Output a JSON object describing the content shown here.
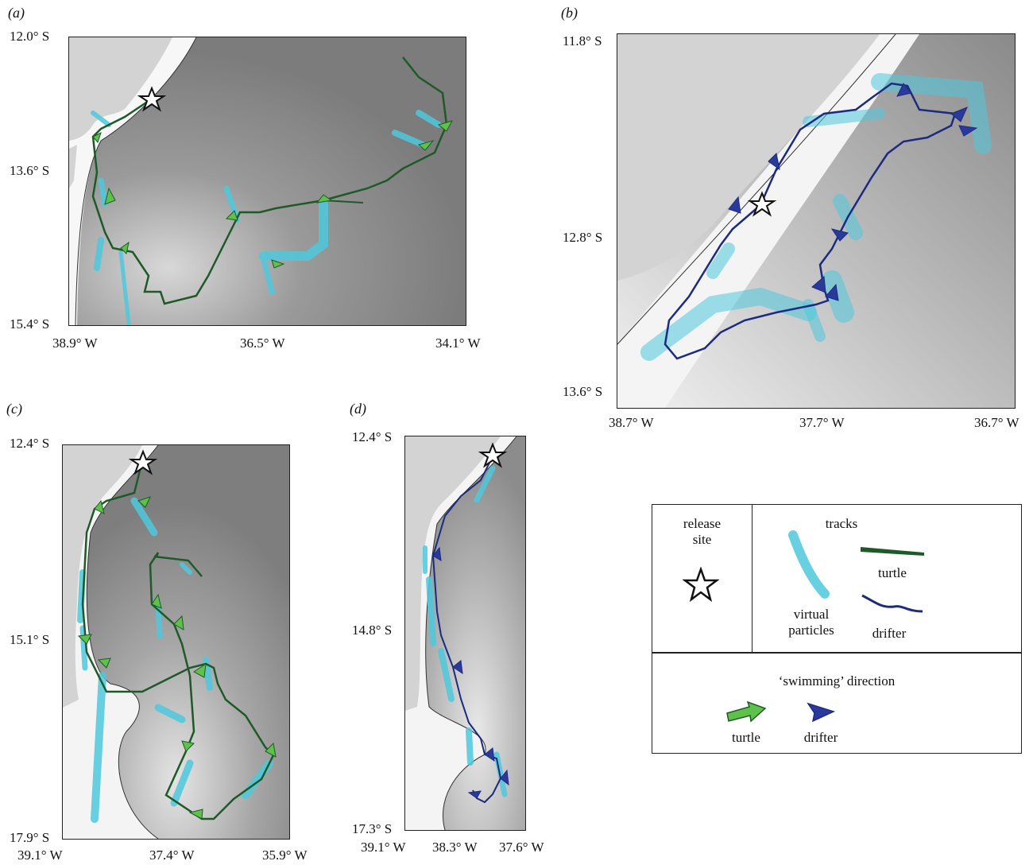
{
  "panels": {
    "a": {
      "label": "(a)",
      "lat_ticks": [
        "12.0° S",
        "13.6° S",
        "15.4° S"
      ],
      "lon_ticks": [
        "38.9° W",
        "36.5° W",
        "34.1° W"
      ]
    },
    "b": {
      "label": "(b)",
      "lat_ticks": [
        "11.8° S",
        "12.8° S",
        "13.6° S"
      ],
      "lon_ticks": [
        "38.7° W",
        "37.7° W",
        "36.7° W"
      ]
    },
    "c": {
      "label": "(c)",
      "lat_ticks": [
        "12.4° S",
        "15.1° S",
        "17.9° S"
      ],
      "lon_ticks": [
        "39.1° W",
        "37.4° W",
        "35.9° W"
      ]
    },
    "d": {
      "label": "(d)",
      "lat_ticks": [
        "12.4° S",
        "14.8° S",
        "17.3° S"
      ],
      "lon_ticks": [
        "39.1° W",
        "38.3° W",
        "37.6° W"
      ]
    }
  },
  "legend": {
    "release_site": "release\nsite",
    "tracks": "tracks",
    "virtual_particles": "virtual\nparticles",
    "turtle": "turtle",
    "drifter": "drifter",
    "swimming_direction": "‘swimming’ direction",
    "turtle_arrow": "turtle",
    "drifter_arrow": "drifter"
  },
  "colors": {
    "turtle_track": "#1e5a28",
    "turtle_arrow": "#5ec24a",
    "drifter": "#1c2a80",
    "particles": "#4fc8dc",
    "land": "#d4d4d4",
    "ocean_deep": "#7a7a7a",
    "ocean_shelf": "#ffffff"
  },
  "icons": {
    "release_site": "star-outline-icon",
    "turtle_arrow": "green-arrow-icon",
    "drifter_arrow": "blue-triangle-arrow-icon"
  }
}
